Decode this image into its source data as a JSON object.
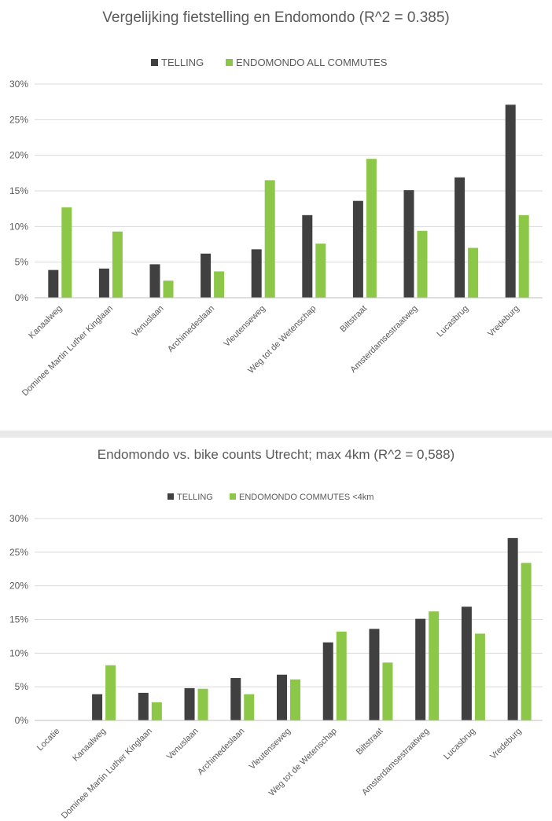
{
  "colors": {
    "telling": "#404040",
    "endomondo": "#8cc748",
    "grid": "#d9d9d9",
    "text": "#595959"
  },
  "chart_data": [
    {
      "type": "bar",
      "title": "Vergelijking fietstelling en Endomondo (R^2 = 0.385)",
      "legend": "top-center",
      "ylim": [
        0,
        30
      ],
      "ticks": [
        "0%",
        "5%",
        "10%",
        "15%",
        "20%",
        "25%",
        "30%"
      ],
      "grid": true,
      "categories": [
        "Kanaalweg",
        "Dominee Martin Luther Kinglaan",
        "Venuslaan",
        "Archimedeslaan",
        "Vleutenseweg",
        "Weg tot de Wetenschap",
        "Biltstraat",
        "Amsterdamsestraatweg",
        "Lucasbrug",
        "Vredeburg"
      ],
      "series": [
        {
          "name": "TELLING",
          "values": [
            3.9,
            4.1,
            4.7,
            6.2,
            6.8,
            11.6,
            13.6,
            15.1,
            16.9,
            27.1
          ]
        },
        {
          "name": "ENDOMONDO ALL COMMUTES",
          "values": [
            12.7,
            9.3,
            2.4,
            3.7,
            16.5,
            7.6,
            19.5,
            9.4,
            7.0,
            11.6
          ]
        }
      ]
    },
    {
      "type": "bar",
      "title": "Endomondo vs. bike counts Utrecht; max 4km (R^2 = 0,588)",
      "legend": "top-center",
      "ylim": [
        0,
        30
      ],
      "ticks": [
        "0%",
        "5%",
        "10%",
        "15%",
        "20%",
        "25%",
        "30%"
      ],
      "grid": true,
      "categories": [
        "Locatie",
        "Kanaalweg",
        "Dominee Martin Luther Kinglaan",
        "Venuslaan",
        "Archimedeslaan",
        "Vleutenseweg",
        "Weg tot de Wetenschap",
        "Biltstraat",
        "Amsterdamsestraatweg",
        "Lucasbrug",
        "Vredeburg"
      ],
      "series": [
        {
          "name": "TELLING",
          "values": [
            0,
            3.9,
            4.1,
            4.8,
            6.3,
            6.8,
            11.6,
            13.6,
            15.1,
            16.9,
            27.1
          ]
        },
        {
          "name": "ENDOMONDO COMMUTES <4km",
          "values": [
            0,
            8.2,
            2.7,
            4.7,
            3.9,
            6.1,
            13.2,
            8.6,
            16.2,
            12.9,
            23.4
          ]
        }
      ]
    }
  ]
}
